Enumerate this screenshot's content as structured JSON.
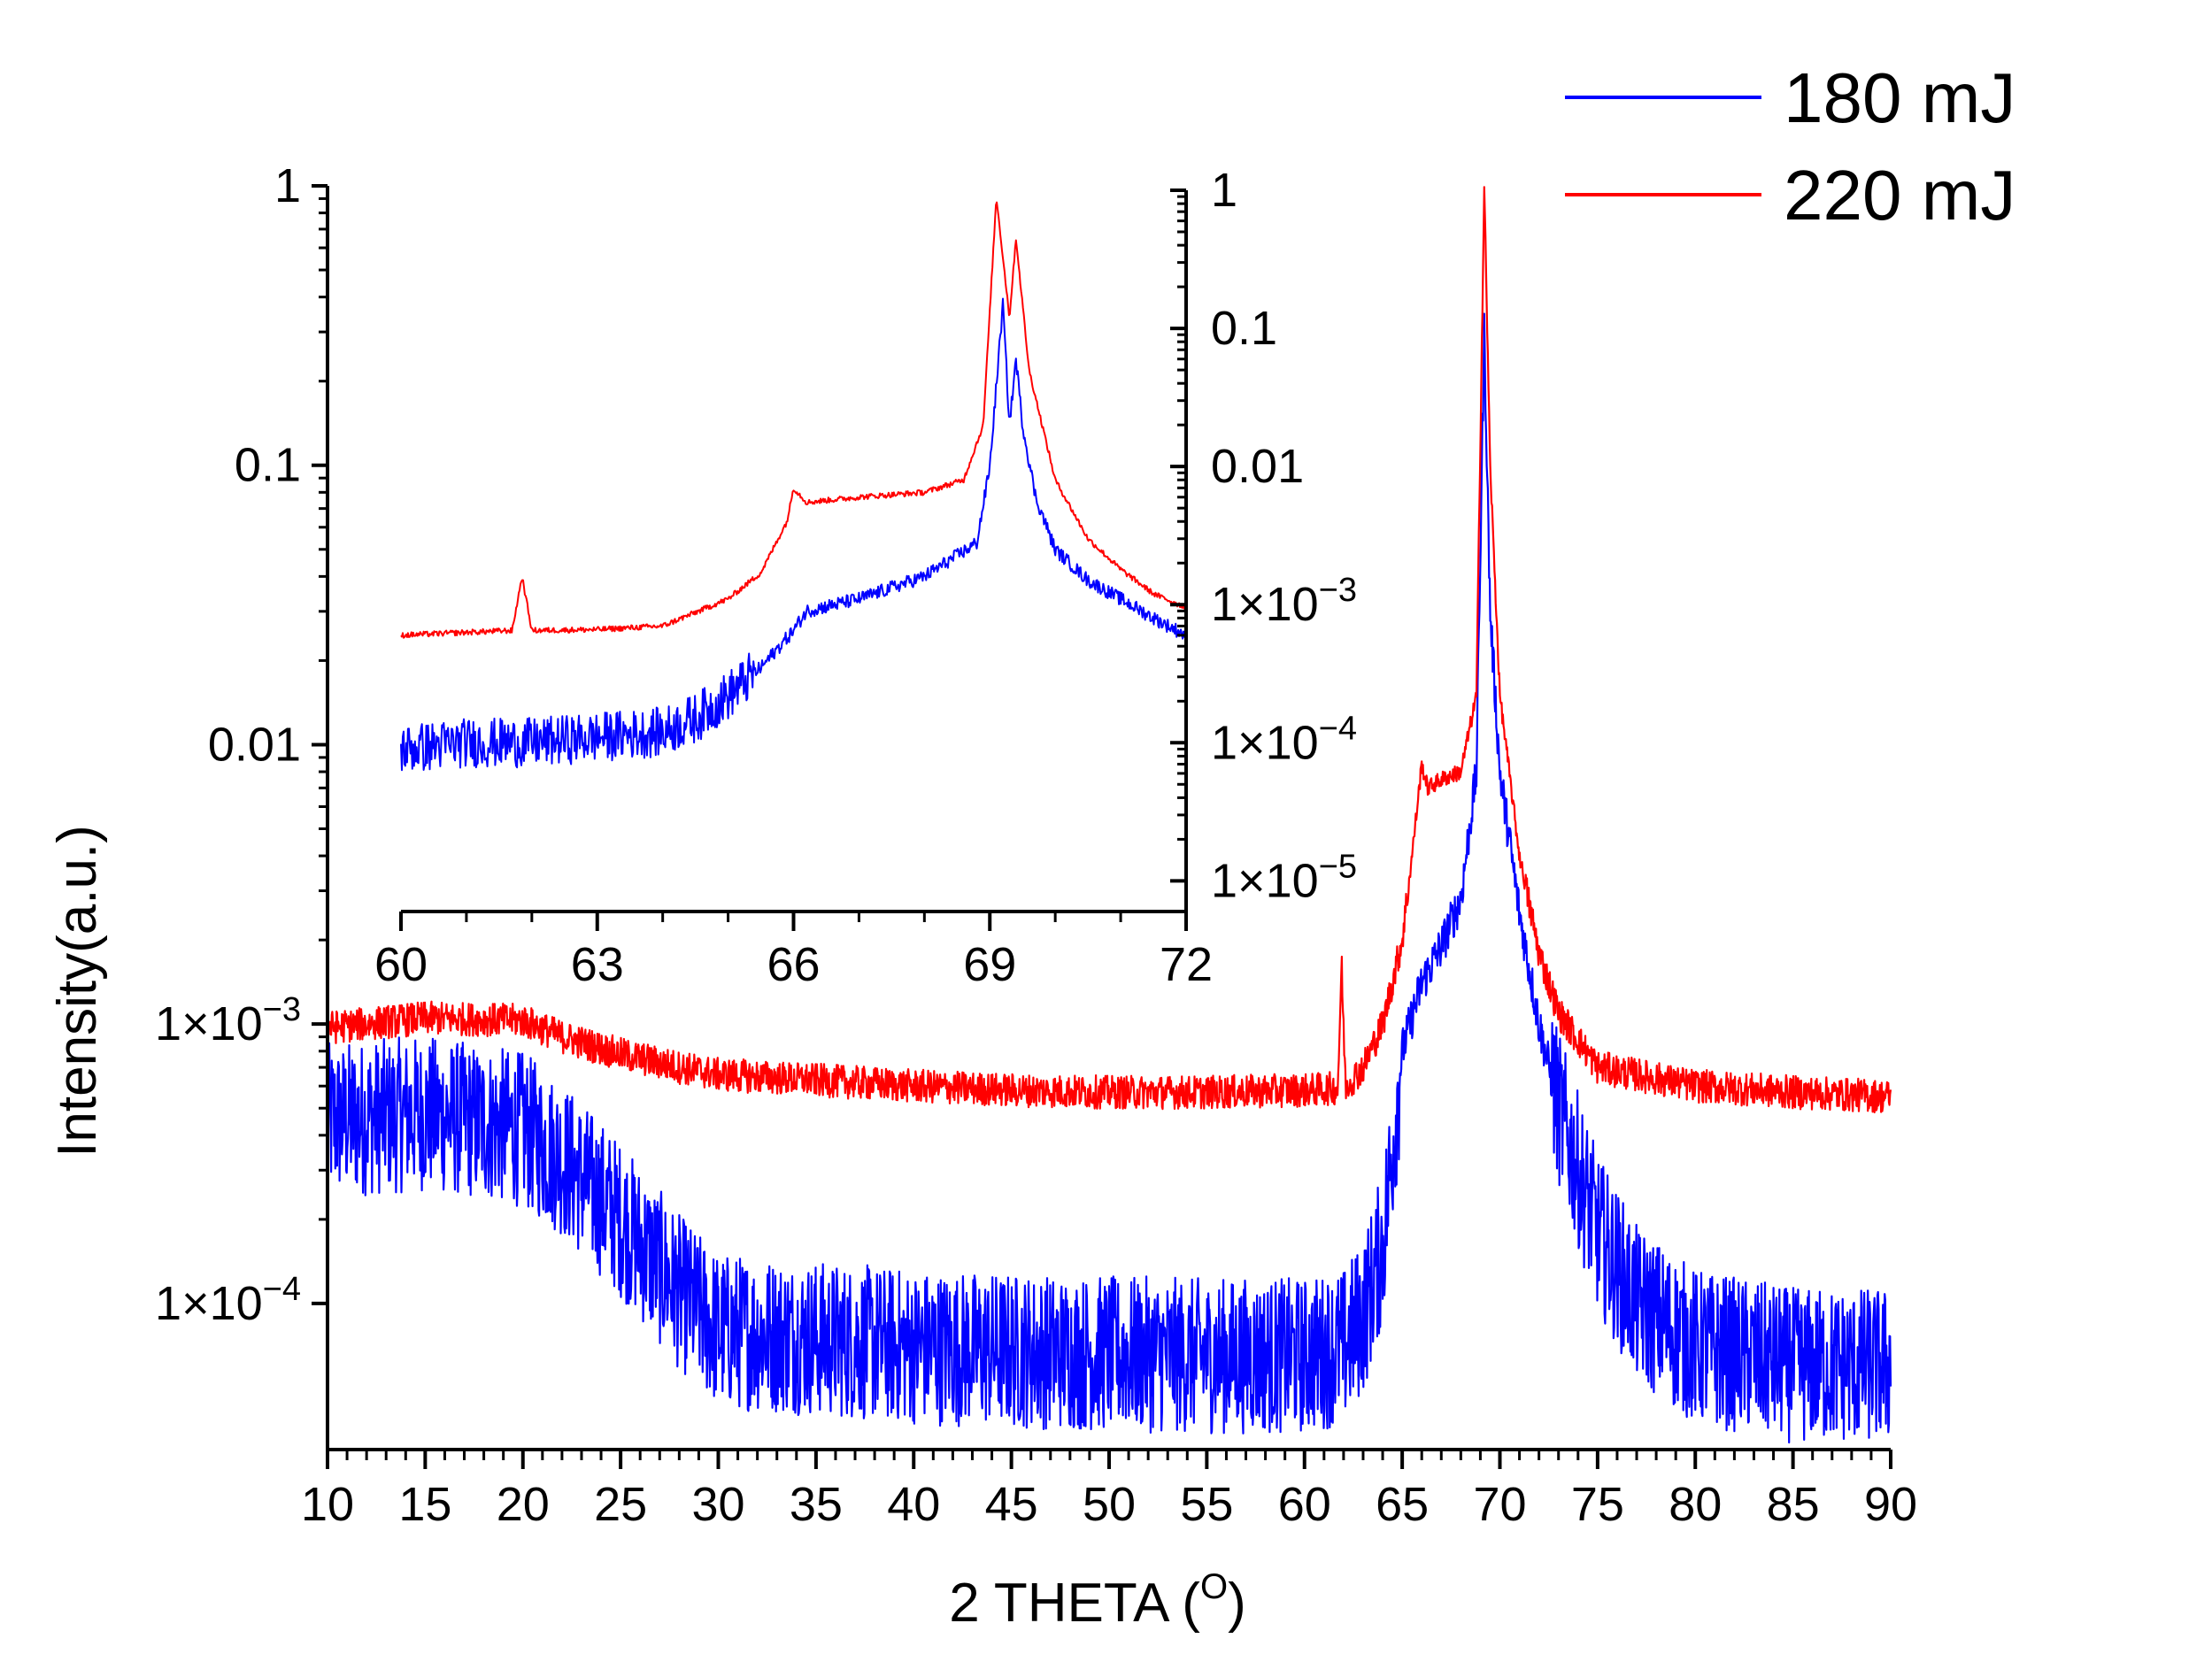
{
  "chart_data": [
    {
      "type": "line",
      "role": "main",
      "xlabel": "2 THETA (",
      "xlabel_sup": "O",
      "xlabel_end": ")",
      "ylabel": "Intensity(a.u.)",
      "xlim": [
        10,
        90
      ],
      "ylim": [
        3e-05,
        1
      ],
      "yscale": "log",
      "x_ticks": [
        10,
        15,
        20,
        25,
        30,
        35,
        40,
        45,
        50,
        55,
        60,
        65,
        70,
        75,
        80,
        85,
        90
      ],
      "x_tick_labels": [
        "10",
        "15",
        "20",
        "25",
        "30",
        "35",
        "40",
        "45",
        "50",
        "55",
        "60",
        "65",
        "70",
        "75",
        "80",
        "85",
        "90"
      ],
      "y_ticks": [
        {
          "value": 1,
          "label": "1"
        },
        {
          "value": 0.1,
          "label": "0.1"
        },
        {
          "value": 0.01,
          "label": "0.01"
        },
        {
          "value": 0.001,
          "mantissa": "1×10",
          "exp": "−3"
        },
        {
          "value": 0.0001,
          "mantissa": "1×10",
          "exp": "−4"
        }
      ],
      "series": [
        {
          "name": "180 mJ",
          "color": "#0000ff",
          "x": [
            10,
            15,
            20,
            22,
            25,
            28,
            30,
            35,
            40,
            45,
            50,
            55,
            60,
            62,
            63,
            64,
            65,
            66,
            67,
            68,
            68.8,
            69.2,
            69.5,
            70,
            71,
            72,
            73,
            75,
            77,
            80,
            85,
            90
          ],
          "y": [
            0.00045,
            0.00048,
            0.00042,
            0.00033,
            0.0002,
            0.00011,
            8e-05,
            7.5e-05,
            7e-05,
            6.8e-05,
            6.6e-05,
            6.5e-05,
            6.5e-05,
            7e-05,
            9e-05,
            0.00016,
            0.0008,
            0.0014,
            0.0019,
            0.0028,
            0.008,
            0.3,
            0.03,
            0.008,
            0.0025,
            0.001,
            0.0005,
            0.00018,
            0.0001,
            7e-05,
            6e-05,
            6e-05
          ]
        },
        {
          "name": "220 mJ",
          "color": "#ff0000",
          "x": [
            10,
            15,
            20,
            22,
            25,
            28,
            30,
            35,
            40,
            45,
            50,
            55,
            60,
            61.7,
            61.9,
            62.1,
            63,
            64,
            65,
            65.5,
            66,
            66.3,
            67,
            68,
            68.8,
            69.2,
            69.5,
            70,
            71,
            72,
            73,
            75,
            80,
            85,
            90
          ],
          "y": [
            0.00097,
            0.00105,
            0.00103,
            0.0009,
            0.00078,
            0.0007,
            0.00066,
            0.00063,
            0.0006,
            0.00058,
            0.00057,
            0.00057,
            0.00058,
            0.00059,
            0.0016,
            0.0006,
            0.0007,
            0.001,
            0.002,
            0.004,
            0.0085,
            0.007,
            0.0075,
            0.008,
            0.015,
            1.0,
            0.1,
            0.015,
            0.004,
            0.0018,
            0.0011,
            0.0007,
            0.0006,
            0.00057,
            0.00055
          ]
        }
      ],
      "legend": {
        "position": "top-right",
        "entries": [
          "180 mJ",
          "220 mJ"
        ]
      }
    },
    {
      "type": "line",
      "role": "inset",
      "xlim": [
        60,
        72
      ],
      "ylim": [
        6e-06,
        1
      ],
      "yscale": "log",
      "x_ticks": [
        60,
        63,
        66,
        69,
        72
      ],
      "x_tick_labels": [
        "60",
        "63",
        "66",
        "69",
        "72"
      ],
      "y_ticks": [
        {
          "value": 1,
          "label": "1"
        },
        {
          "value": 0.1,
          "label": "0.1"
        },
        {
          "value": 0.01,
          "label": "0.01"
        },
        {
          "value": 0.001,
          "mantissa": "1×10",
          "exp": "−3"
        },
        {
          "value": 0.0001,
          "mantissa": "1×10",
          "exp": "−4"
        },
        {
          "value": 1e-05,
          "mantissa": "1×10",
          "exp": "−5"
        }
      ],
      "series": [
        {
          "name": "180 mJ",
          "color": "#0000ff",
          "x": [
            60,
            61,
            62,
            63,
            64,
            64.5,
            65,
            65.5,
            66,
            66.2,
            67,
            68,
            68.8,
            69.0,
            69.2,
            69.3,
            69.4,
            69.5,
            69.7,
            70,
            70.5,
            71,
            71.5,
            72
          ],
          "y": [
            9e-05,
            0.0001,
            0.0001,
            0.00011,
            0.00012,
            0.00015,
            0.00022,
            0.00035,
            0.00065,
            0.0009,
            0.0011,
            0.0016,
            0.0028,
            0.01,
            0.15,
            0.02,
            0.06,
            0.02,
            0.006,
            0.0025,
            0.0015,
            0.0011,
            0.0008,
            0.0006
          ]
        },
        {
          "name": "220 mJ",
          "color": "#ff0000",
          "x": [
            60,
            61,
            61.7,
            61.85,
            62.0,
            63,
            64,
            65,
            65.5,
            65.9,
            66.0,
            66.2,
            67,
            68,
            68.6,
            68.9,
            69.1,
            69.3,
            69.4,
            69.5,
            69.6,
            70,
            70.5,
            71,
            71.5,
            72
          ],
          "y": [
            0.0006,
            0.00063,
            0.00065,
            0.0016,
            0.00065,
            0.00066,
            0.0007,
            0.0011,
            0.0017,
            0.004,
            0.007,
            0.0055,
            0.006,
            0.0065,
            0.008,
            0.02,
            0.9,
            0.12,
            0.45,
            0.15,
            0.05,
            0.008,
            0.003,
            0.0018,
            0.0012,
            0.00095
          ]
        }
      ]
    }
  ]
}
